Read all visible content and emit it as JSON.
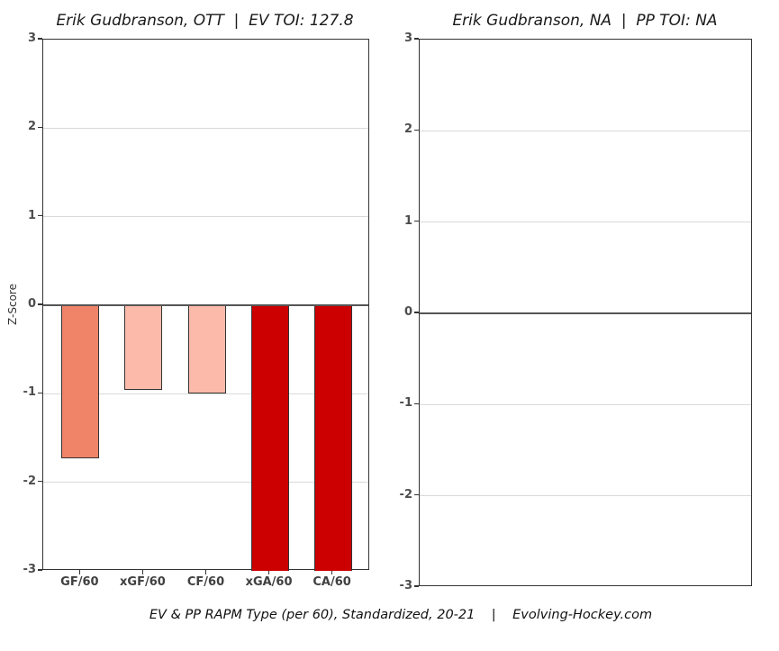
{
  "figure": {
    "caption": "EV & PP RAPM Type (per 60), Standardized, 20-21    |    Evolving-Hockey.com"
  },
  "colors": {
    "background": "#ffffff",
    "panel_border": "#333333",
    "gridline": "#d9d9d9",
    "zero_line": "#555555",
    "y_tick_label": "#4d4d4d",
    "x_tick_label": "#404040",
    "bar_border": "#333333",
    "salmon": "#EF8468",
    "light_pink": "#FCBBAA",
    "dark_red": "#CC0000"
  },
  "chart_data": [
    {
      "type": "bar",
      "title": "Erik Gudbranson, OTT  |  EV TOI: 127.8",
      "ylabel": "Z-Score",
      "ylim": [
        -3,
        3
      ],
      "yticks": [
        3,
        2,
        1,
        0,
        -1,
        -2,
        -3
      ],
      "grid": "on",
      "legend": "none",
      "categories": [
        "GF/60",
        "xGF/60",
        "CF/60",
        "xGA/60",
        "CA/60"
      ],
      "values": [
        -1.73,
        -0.96,
        -1.0,
        -3,
        -3
      ],
      "clipped_at_axis": [
        false,
        false,
        false,
        true,
        true
      ],
      "bar_colors": [
        "#EF8468",
        "#FCBBAA",
        "#FCBBAA",
        "#CC0000",
        "#CC0000"
      ]
    },
    {
      "type": "bar",
      "title": "Erik Gudbranson, NA  |  PP TOI: NA",
      "ylabel": "",
      "ylim": [
        -3,
        3
      ],
      "yticks": [
        3,
        2,
        1,
        0,
        -1,
        -2,
        -3
      ],
      "grid": "on",
      "legend": "none",
      "categories": [],
      "values": []
    }
  ]
}
